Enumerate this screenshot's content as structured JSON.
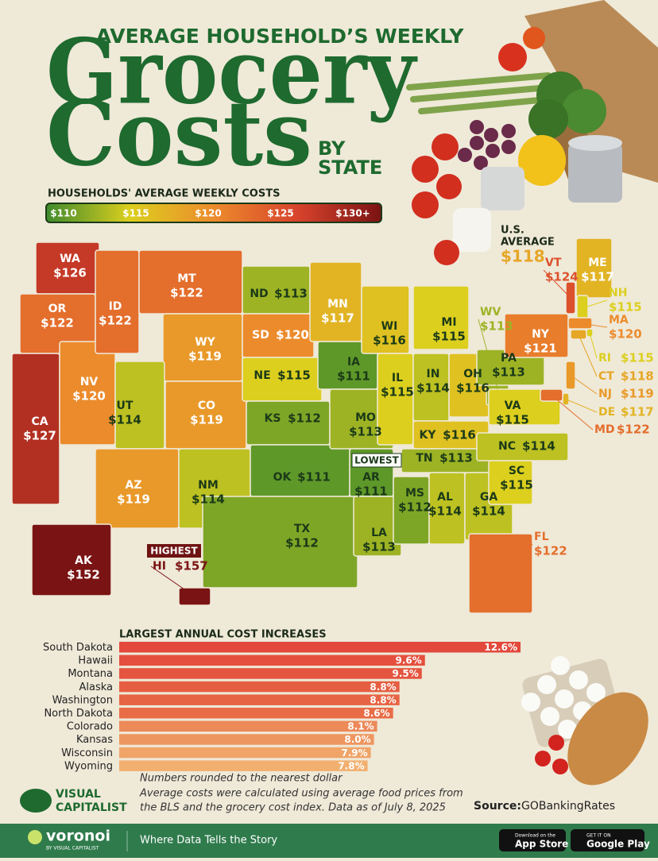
{
  "header": {
    "kicker": "AVERAGE HOUSEHOLD’S WEEKLY",
    "title_line1": "Grocery",
    "title_line2": "Costs",
    "by": "BY",
    "state": "STATE"
  },
  "chart_data": [
    {
      "type": "map",
      "legend_title": "HOUSEHOLDS' AVERAGE WEEKLY COSTS",
      "legend_ticks": [
        {
          "value": 110,
          "label": "$110"
        },
        {
          "value": 115,
          "label": "$115"
        },
        {
          "value": 120,
          "label": "$120"
        },
        {
          "value": 125,
          "label": "$125"
        },
        {
          "value": 130,
          "label": "$130+"
        }
      ],
      "colors": [
        "#3f8a2c",
        "#dccf1e",
        "#ec8b2c",
        "#d8432c",
        "#7a1313"
      ],
      "categories": [
        "WA",
        "OR",
        "CA",
        "NV",
        "ID",
        "MT",
        "WY",
        "UT",
        "CO",
        "AZ",
        "NM",
        "ND",
        "SD",
        "NE",
        "KS",
        "OK",
        "TX",
        "MN",
        "IA",
        "MO",
        "AR",
        "LA",
        "WI",
        "IL",
        "MS",
        "MI",
        "IN",
        "KY",
        "TN",
        "AL",
        "GA",
        "FL",
        "OH",
        "WV",
        "VA",
        "PA",
        "NY",
        "NC",
        "SC",
        "VT",
        "ME",
        "NH",
        "MA",
        "RI",
        "CT",
        "NJ",
        "DE",
        "MD",
        "AK",
        "HI"
      ],
      "values": [
        126,
        122,
        127,
        120,
        122,
        122,
        119,
        114,
        119,
        119,
        114,
        113,
        120,
        115,
        112,
        111,
        112,
        117,
        111,
        113,
        111,
        113,
        116,
        115,
        112,
        115,
        114,
        116,
        113,
        114,
        114,
        122,
        116,
        113,
        115,
        113,
        121,
        114,
        115,
        124,
        117,
        115,
        120,
        115,
        118,
        119,
        117,
        122,
        152,
        157
      ],
      "value_labels": [
        "$126",
        "$122",
        "$127",
        "$120",
        "$122",
        "$122",
        "$119",
        "$114",
        "$119",
        "$119",
        "$114",
        "$113",
        "$120",
        "$115",
        "$112",
        "$111",
        "$112",
        "$117",
        "$111",
        "$113",
        "$111",
        "$113",
        "$116",
        "$115",
        "$112",
        "$115",
        "$114",
        "$116",
        "$113",
        "$114",
        "$114",
        "$122",
        "$116",
        "$113",
        "$115",
        "$113",
        "$121",
        "$114",
        "$115",
        "$124",
        "$117",
        "$115",
        "$120",
        "$115",
        "$118",
        "$119",
        "$117",
        "$122",
        "$152",
        "$157"
      ],
      "average": {
        "label_line1": "U.S.",
        "label_line2": "AVERAGE",
        "value": 118,
        "value_label": "$118"
      },
      "highest_label": "HIGHEST",
      "lowest_label": "LOWEST"
    },
    {
      "type": "bar",
      "title": "LARGEST ANNUAL COST INCREASES",
      "categories": [
        "South Dakota",
        "Hawaii",
        "Montana",
        "Alaska",
        "Washington",
        "North Dakota",
        "Colorado",
        "Kansas",
        "Wisconsin",
        "Wyoming"
      ],
      "values": [
        12.6,
        9.6,
        9.5,
        8.8,
        8.8,
        8.6,
        8.1,
        8.0,
        7.9,
        7.8
      ],
      "value_labels": [
        "12.6%",
        "9.6%",
        "9.5%",
        "8.8%",
        "8.8%",
        "8.6%",
        "8.1%",
        "8.0%",
        "7.9%",
        "7.8%"
      ],
      "colors": [
        "#e2483b",
        "#e4503d",
        "#e4543e",
        "#e65e42",
        "#e66444",
        "#e86c46",
        "#ec8a5a",
        "#ee9660",
        "#f0a468",
        "#f2b070"
      ]
    }
  ],
  "notes": [
    "Numbers rounded to the nearest dollar",
    "Average costs were calculated using average food prices from",
    "the BLS and the grocery cost index. Data as of July 8, 2025"
  ],
  "source_label": "Source:",
  "source": "GOBankingRates",
  "logo": {
    "line1": "VISUAL",
    "line2": "CAPITALIST"
  },
  "footer": {
    "brand": "voronoi",
    "brand_sub": "BY VISUAL CAPITALIST",
    "tagline": "Where Data Tells the Story",
    "app_store_small": "Download on the",
    "app_store": "App Store",
    "google_small": "GET IT ON",
    "google": "Google Play"
  }
}
